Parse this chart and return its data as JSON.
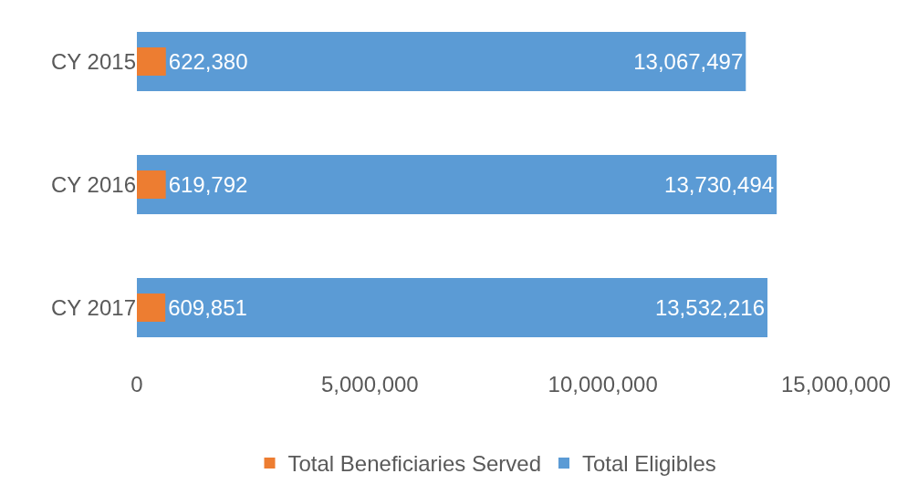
{
  "chart_data": {
    "type": "bar",
    "orientation": "horizontal",
    "categories": [
      "CY 2015",
      "CY 2016",
      "CY 2017"
    ],
    "series": [
      {
        "name": "Total Beneficiaries Served",
        "color": "#ed7d31",
        "values": [
          622380,
          619792,
          609851
        ],
        "value_labels": [
          "622,380",
          "619,792",
          "609,851"
        ]
      },
      {
        "name": "Total Eligibles",
        "color": "#5b9bd5",
        "values": [
          13067497,
          13730494,
          13532216
        ],
        "value_labels": [
          "13,067,497",
          "13,730,494",
          "13,532,216"
        ]
      }
    ],
    "xlim": [
      0,
      15000000
    ],
    "xticks": [
      0,
      {
        "value": 5000000,
        "label": "5,000,000"
      },
      {
        "value": 10000000,
        "label": "10,000,000"
      },
      {
        "value": 15000000,
        "label": "15,000,000"
      }
    ],
    "legend": "bottom"
  }
}
